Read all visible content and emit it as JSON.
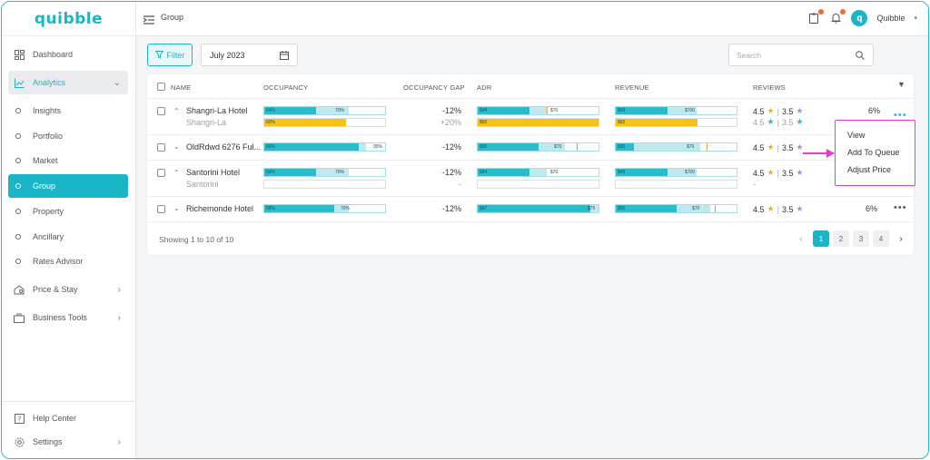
{
  "brand": {
    "name": "quibble",
    "accent": "#1ab6c8"
  },
  "sidebar": {
    "items": [
      {
        "label": "Dashboard",
        "icon": "dashboard-icon"
      },
      {
        "label": "Analytics",
        "icon": "chart-line-icon",
        "expanded": true
      },
      {
        "label": "Insights"
      },
      {
        "label": "Portfolio"
      },
      {
        "label": "Market"
      },
      {
        "label": "Group",
        "active": true
      },
      {
        "label": "Property"
      },
      {
        "label": "Ancillary"
      },
      {
        "label": "Rates Advisor"
      },
      {
        "label": "Price & Stay",
        "icon": "price-tag-icon"
      },
      {
        "label": "Business Tools",
        "icon": "briefcase-icon"
      }
    ],
    "bottom": [
      {
        "label": "Help Center",
        "icon": "help-icon"
      },
      {
        "label": "Settings",
        "icon": "gear-icon"
      }
    ]
  },
  "topbar": {
    "title": "Group",
    "user": "Quibble",
    "avatar_letter": "q"
  },
  "controls": {
    "filter_label": "Filter",
    "date_value": "July 2023",
    "search_placeholder": "Search"
  },
  "table": {
    "columns": [
      "NAME",
      "OCCUPANCY",
      "OCCUPANCY GAP",
      "ADR",
      "REVENUE",
      "REVIEWS"
    ],
    "rows": [
      {
        "name": "Shangri-La Hotel",
        "sub": "Shangri-La",
        "expanded": true,
        "occ": {
          "a": "64%",
          "b": "70%",
          "sub": "60%",
          "fill": 0.43,
          "fill2": 0.7,
          "subfill": 0.68
        },
        "gap": "-12%",
        "gap_sub": "+20%",
        "adr": {
          "a": "$44",
          "b": "$70",
          "sub": "$60",
          "fill": 0.43,
          "fill2": 0.57,
          "subfill": 1.0
        },
        "revenue": {
          "a": "$49",
          "b": "$700",
          "sub": "$60",
          "fill": 0.43,
          "fill2": 0.67,
          "subfill": 0.68
        },
        "reviews": {
          "r1": "4.5",
          "r2": "3.5",
          "sub_r1": "4.5",
          "sub_r2": "3.5"
        },
        "pct": "6%"
      },
      {
        "name": "OldRdwd 6276 Ful...",
        "sub": "",
        "expanded": false,
        "occ": {
          "a": "80%",
          "b": "95%",
          "fill": 0.78,
          "fill2": 0.84
        },
        "gap": "-12%",
        "adr": {
          "a": "$50",
          "b": "$70",
          "fill": 0.5,
          "fill2": 0.72,
          "marker": 0.82
        },
        "revenue": {
          "a": "$30",
          "b": "$70",
          "fill": 0.15,
          "fill2": 0.7,
          "marker": 0.75
        },
        "reviews": {
          "r1": "4.5",
          "r2": "3.5"
        }
      },
      {
        "name": "Santorini Hotel",
        "sub": "Santorini",
        "expanded": true,
        "occ": {
          "a": "64%",
          "b": "70%",
          "fill": 0.43,
          "fill2": 0.7
        },
        "gap": "-12%",
        "gap_sub": "-",
        "adr": {
          "a": "$44",
          "b": "$70",
          "fill": 0.43,
          "fill2": 0.57
        },
        "revenue": {
          "a": "$49",
          "b": "$700",
          "fill": 0.43,
          "fill2": 0.67
        },
        "reviews": {
          "r1": "4.5",
          "r2": "3.5",
          "sub": "-"
        }
      },
      {
        "name": "Richemonde Hotel",
        "sub": "",
        "expanded": false,
        "occ": {
          "a": "58%",
          "b": "70%",
          "fill": 0.58,
          "fill2": 0.7
        },
        "gap": "-12%",
        "adr": {
          "a": "$87",
          "b": "$75",
          "fill": 0.93,
          "fill2": 1.0
        },
        "revenue": {
          "a": "$50",
          "b": "$70",
          "fill": 0.5,
          "fill2": 0.78,
          "marker": 0.82
        },
        "reviews": {
          "r1": "4.5",
          "r2": "3.5"
        },
        "pct": "6%"
      }
    ]
  },
  "footer": {
    "showing": "Showing 1 to 10 of 10",
    "pages": [
      "1",
      "2",
      "3",
      "4"
    ],
    "current_page": "1"
  },
  "context_menu": {
    "items": [
      "View",
      "Add To Queue",
      "Adjust Price"
    ]
  },
  "colors": {
    "bar_primary": "#28bccd",
    "bar_secondary": "#bfe9ef",
    "bar_yellow": "#f5c314",
    "annotation": "#e040d0",
    "notify": "#f26a2e"
  }
}
